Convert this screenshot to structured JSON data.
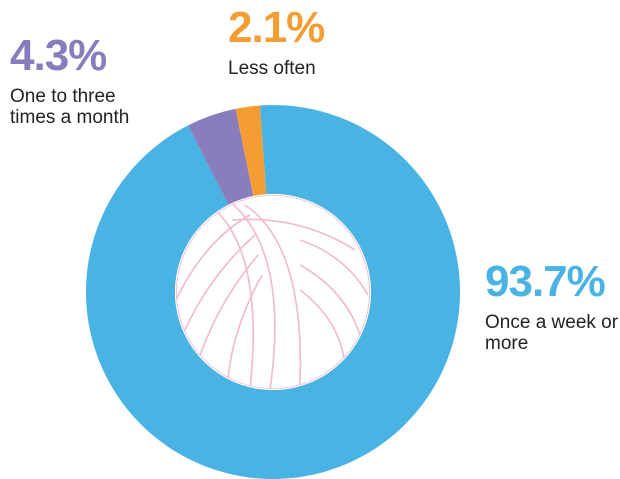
{
  "chart_data": {
    "type": "pie",
    "donut": true,
    "categories": [
      "Once a week or more",
      "One to three times a month",
      "Less often"
    ],
    "values": [
      93.7,
      4.3,
      2.1
    ],
    "value_labels": [
      "93.7%",
      "4.3%",
      "2.1%"
    ],
    "colors": [
      "#49b4e3",
      "#8a7dbd",
      "#f49d33"
    ]
  }
}
